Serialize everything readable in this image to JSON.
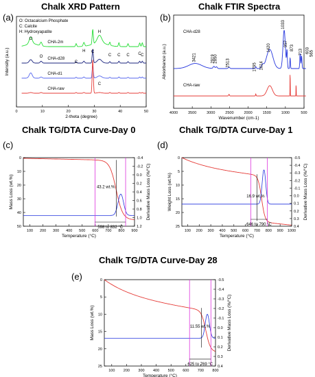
{
  "panels": [
    {
      "id": "a",
      "letter": "(a)",
      "title": "Chalk XRD Pattern",
      "chart_data": {
        "type": "line",
        "title": "Chalk XRD Pattern",
        "xlabel": "2-theta (degree)",
        "ylabel": "Intensity (a.u.)",
        "xlim": [
          0,
          50
        ],
        "xticks": [
          0,
          10,
          20,
          30,
          40,
          50
        ],
        "legend": [
          "O: Octacalcium Phosphate",
          "C: Calcite",
          "H: Hydroxyapatite"
        ],
        "series": [
          {
            "name": "CHA-2m",
            "color": "#22dd33"
          },
          {
            "name": "CHA-d28",
            "color": "#1a237e"
          },
          {
            "name": "CHA-d1",
            "color": "#5566ee"
          },
          {
            "name": "CHA-raw",
            "color": "#e53935"
          }
        ],
        "peak_labels": [
          {
            "label": "O",
            "x": 5.5
          },
          {
            "label": "O",
            "x": 9.5
          },
          {
            "label": "C",
            "x": 23
          },
          {
            "label": "H",
            "x": 26
          },
          {
            "label": "C",
            "x": 29.4
          },
          {
            "label": "H",
            "x": 32
          },
          {
            "label": "C",
            "x": 36
          },
          {
            "label": "C",
            "x": 39.5
          },
          {
            "label": "C",
            "x": 43
          },
          {
            "label": "C",
            "x": 47.5
          },
          {
            "label": "C",
            "x": 48.5
          },
          {
            "label": "C",
            "x": 32
          }
        ]
      }
    },
    {
      "id": "b",
      "letter": "(b)",
      "title": "Chalk FTIR Spectra",
      "chart_data": {
        "type": "line",
        "title": "Chalk FTIR Spectra",
        "xlabel": "Wavenumber (cm-1)",
        "ylabel": "Absorbance (a.u.)",
        "xlim": [
          4000,
          500
        ],
        "xticks": [
          4000,
          3500,
          3000,
          2500,
          2000,
          1500,
          1000,
          500
        ],
        "series": [
          {
            "name": "CHA-d28",
            "color": "#2233dd"
          },
          {
            "name": "CHA-raw",
            "color": "#e53935"
          }
        ],
        "peak_labels": [
          "3421",
          "2919",
          "2850",
          "2513",
          "1795",
          "1614",
          "1420",
          "1033",
          "957",
          "873",
          "713",
          "603",
          "565"
        ]
      }
    },
    {
      "id": "c",
      "letter": "(c)",
      "title": "Chalk TG/DTA Curve-Day 0",
      "chart_data": {
        "type": "line",
        "title": "Chalk TG/DTA Curve-Day 0",
        "xlabel": "Temperature (°C)",
        "ylabel": "Mass Loss (wt.%)",
        "ylabel_right": "Derivative Mass Loss (%/°C)",
        "xlim": [
          50,
          900
        ],
        "xticks": [
          100,
          200,
          300,
          400,
          500,
          600,
          700,
          800,
          900
        ],
        "ylim": [
          50,
          0
        ],
        "yticks": [
          0,
          10,
          20,
          30,
          40,
          50
        ],
        "y2lim": [
          -0.4,
          1.2
        ],
        "y2ticks": [
          -0.4,
          -0.2,
          0.0,
          0.2,
          0.4,
          0.6,
          0.8,
          1.0,
          1.2
        ],
        "mass_loss_label": "43.2 wt.%",
        "temp_range_label": "598 to 832 °C",
        "range": [
          598,
          832
        ]
      }
    },
    {
      "id": "d",
      "letter": "(d)",
      "title": "Chalk TG/DTA Curve-Day 1",
      "chart_data": {
        "type": "line",
        "title": "Chalk TG/DTA Curve-Day 1",
        "xlabel": "Temperature (°C)",
        "ylabel": "Weight Loss (wt.%)",
        "ylabel_right": "Derivative Mass Loss (%/°C)",
        "xlim": [
          50,
          1000
        ],
        "xticks": [
          100,
          200,
          300,
          400,
          500,
          600,
          700,
          800,
          900,
          1000
        ],
        "ylim": [
          25,
          0
        ],
        "yticks": [
          0,
          5,
          10,
          15,
          20,
          25
        ],
        "y2lim": [
          -0.5,
          0.4
        ],
        "y2ticks": [
          -0.5,
          -0.4,
          -0.3,
          -0.2,
          -0.1,
          0.0,
          0.1,
          0.2,
          0.3,
          0.4
        ],
        "mass_loss_label": "16.9 wt.%",
        "temp_range_label": "646 to 790 °C",
        "range": [
          646,
          790
        ]
      }
    },
    {
      "id": "e",
      "letter": "(e)",
      "title": "Chalk TG/DTA Curve-Day 28",
      "chart_data": {
        "type": "line",
        "title": "Chalk TG/DTA Curve-Day 28",
        "xlabel": "Temperature (°C)",
        "ylabel": "Mass Loss (wt.%)",
        "ylabel_right": "Derivative Mass Loss (%/°C)",
        "xlim": [
          50,
          800
        ],
        "xticks": [
          100,
          200,
          300,
          400,
          500,
          600,
          700,
          800
        ],
        "ylim": [
          25,
          0
        ],
        "yticks": [
          0,
          5,
          10,
          15,
          20,
          25
        ],
        "y2lim": [
          -0.5,
          0.4
        ],
        "y2ticks": [
          -0.5,
          -0.4,
          -0.3,
          -0.2,
          -0.1,
          0.0,
          0.1,
          0.2,
          0.3,
          0.4
        ],
        "mass_loss_label": "11.55 wt.%",
        "temp_range_label": "625 to 769 °C",
        "range": [
          625,
          769
        ]
      }
    }
  ]
}
